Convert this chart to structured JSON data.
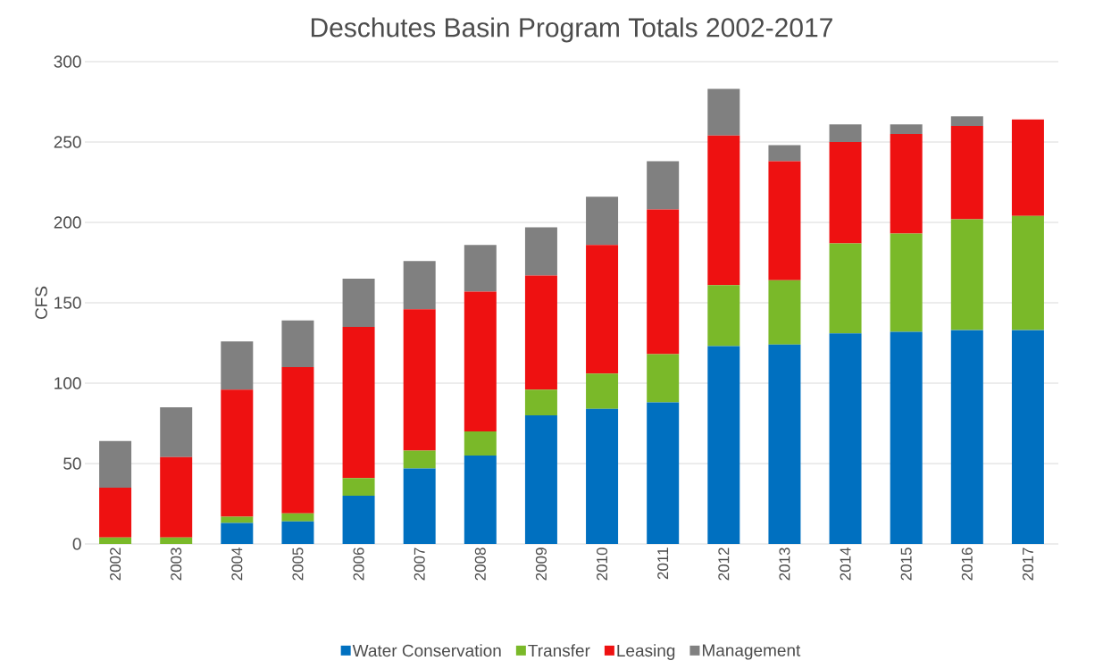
{
  "chart_data": {
    "type": "bar",
    "stacked": true,
    "title": "Deschutes Basin Program Totals 2002-2017",
    "ylabel": "CFS",
    "categories": [
      "2002",
      "2003",
      "2004",
      "2005",
      "2006",
      "2007",
      "2008",
      "2009",
      "2010",
      "2011",
      "2012",
      "2013",
      "2014",
      "2015",
      "2016",
      "2017"
    ],
    "series": [
      {
        "name": "Water Conservation",
        "color": "#0070c0",
        "values": [
          0,
          0,
          13,
          14,
          30,
          47,
          55,
          80,
          84,
          88,
          123,
          124,
          131,
          132,
          133,
          133
        ]
      },
      {
        "name": "Transfer",
        "color": "#7ab929",
        "values": [
          4,
          4,
          4,
          5,
          11,
          11,
          15,
          16,
          22,
          30,
          38,
          40,
          56,
          61,
          69,
          71
        ]
      },
      {
        "name": "Leasing",
        "color": "#ee1111",
        "values": [
          31,
          50,
          79,
          91,
          94,
          88,
          87,
          71,
          80,
          90,
          93,
          74,
          63,
          62,
          58,
          60
        ]
      },
      {
        "name": "Management",
        "color": "#808080",
        "values": [
          29,
          31,
          30,
          29,
          30,
          30,
          29,
          30,
          30,
          30,
          29,
          10,
          11,
          6,
          6,
          0
        ]
      }
    ],
    "ylim": [
      0,
      300
    ],
    "yticks": [
      0,
      50,
      100,
      150,
      200,
      250,
      300
    ],
    "grid": "y",
    "legend": "bottom"
  }
}
